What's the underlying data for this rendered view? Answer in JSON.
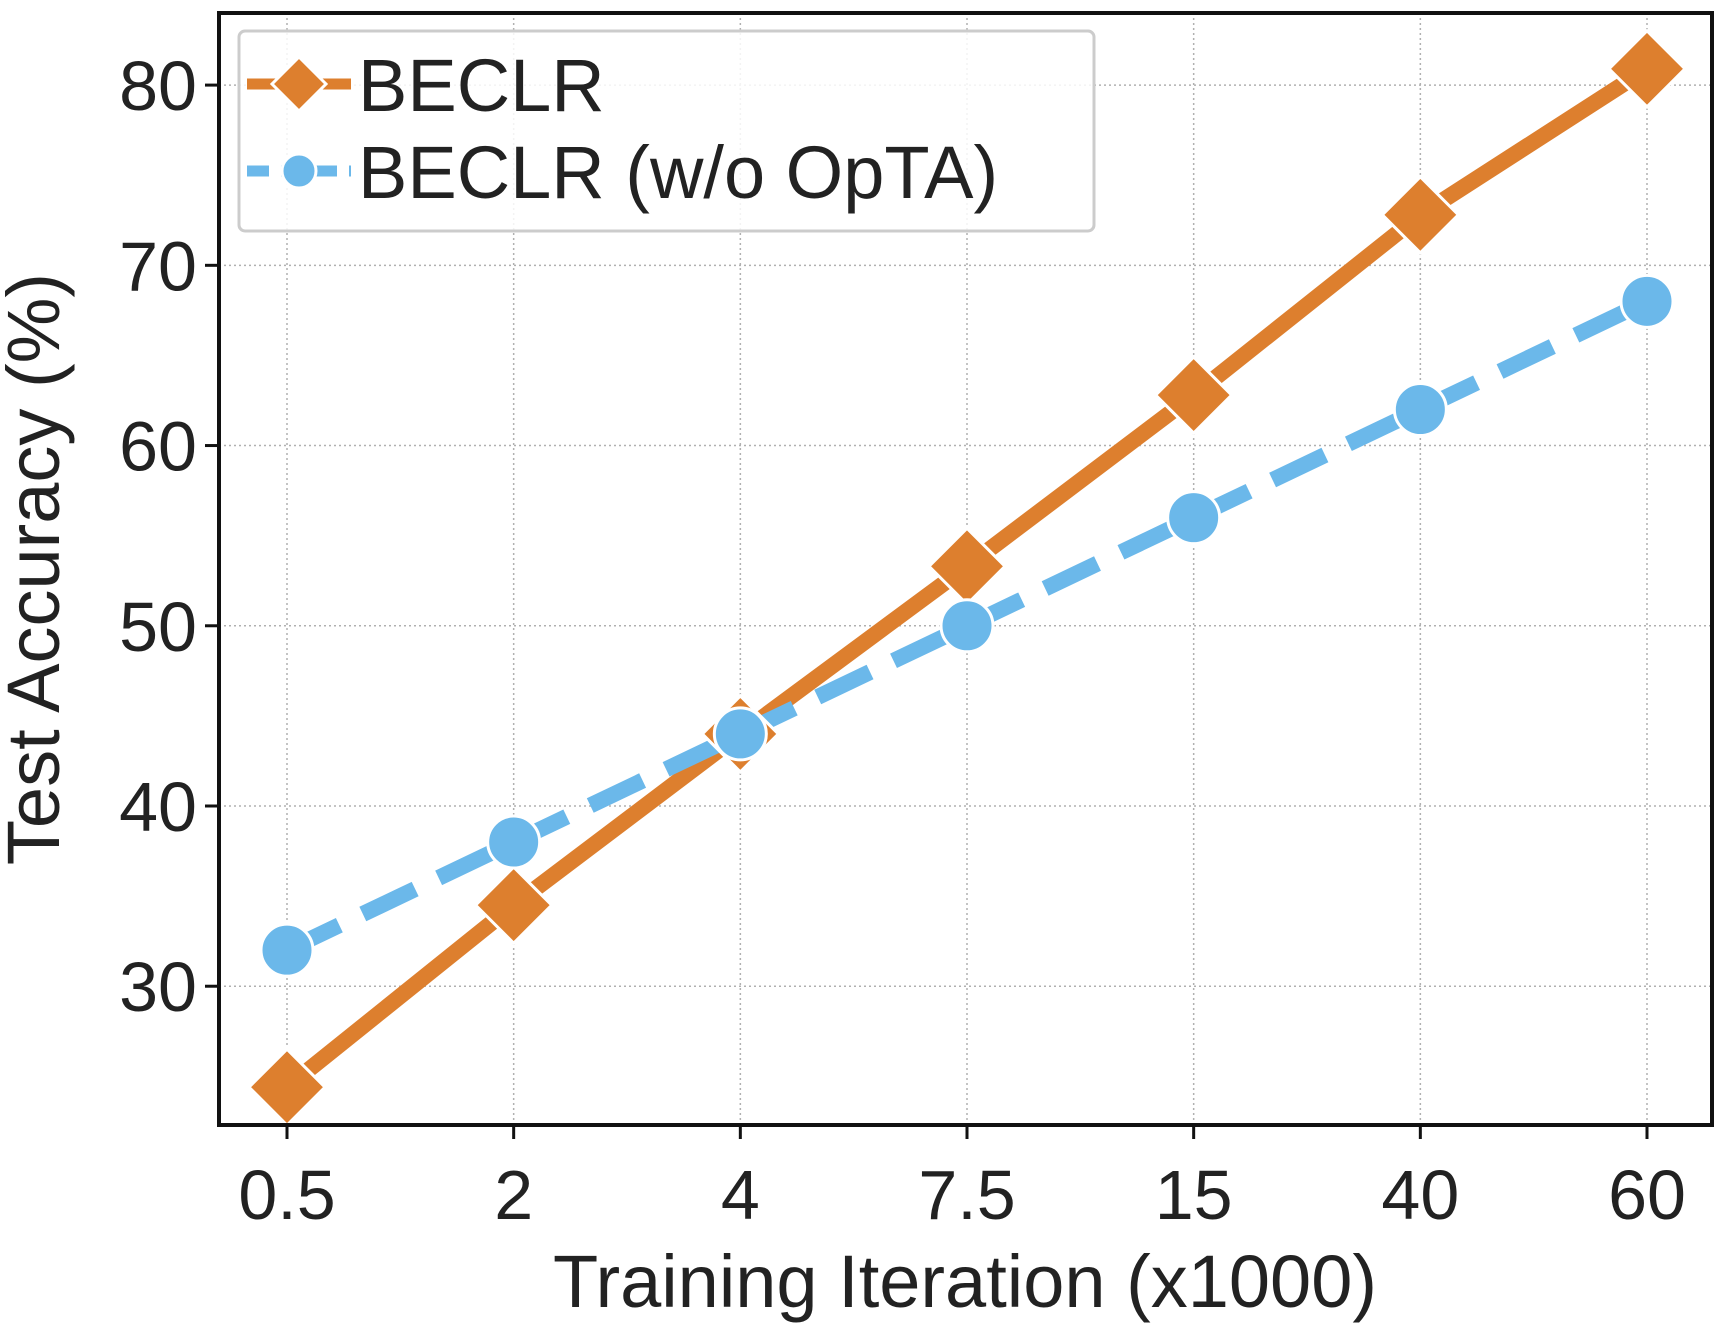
{
  "chart_data": {
    "type": "line",
    "xlabel": "Training Iteration (x1000)",
    "ylabel": "Test Accuracy (%)",
    "categories": [
      "0.5",
      "2",
      "4",
      "7.5",
      "15",
      "40",
      "60"
    ],
    "ylim": [
      22.3,
      84
    ],
    "yticks": [
      30,
      40,
      50,
      60,
      70,
      80
    ],
    "grid": true,
    "legend": "top-left",
    "series": [
      {
        "name": "BECLR",
        "values": [
          24.4,
          34.5,
          44.0,
          53.3,
          62.8,
          72.8,
          80.9
        ],
        "color": "#dd7f2e",
        "marker": "diamond",
        "linestyle": "solid"
      },
      {
        "name": "BECLR (w/o OpTA)",
        "values": [
          32.0,
          38.0,
          44.0,
          50.0,
          56.0,
          62.0,
          68.0
        ],
        "color": "#6bb8ea",
        "marker": "circle",
        "linestyle": "dashed"
      }
    ]
  }
}
